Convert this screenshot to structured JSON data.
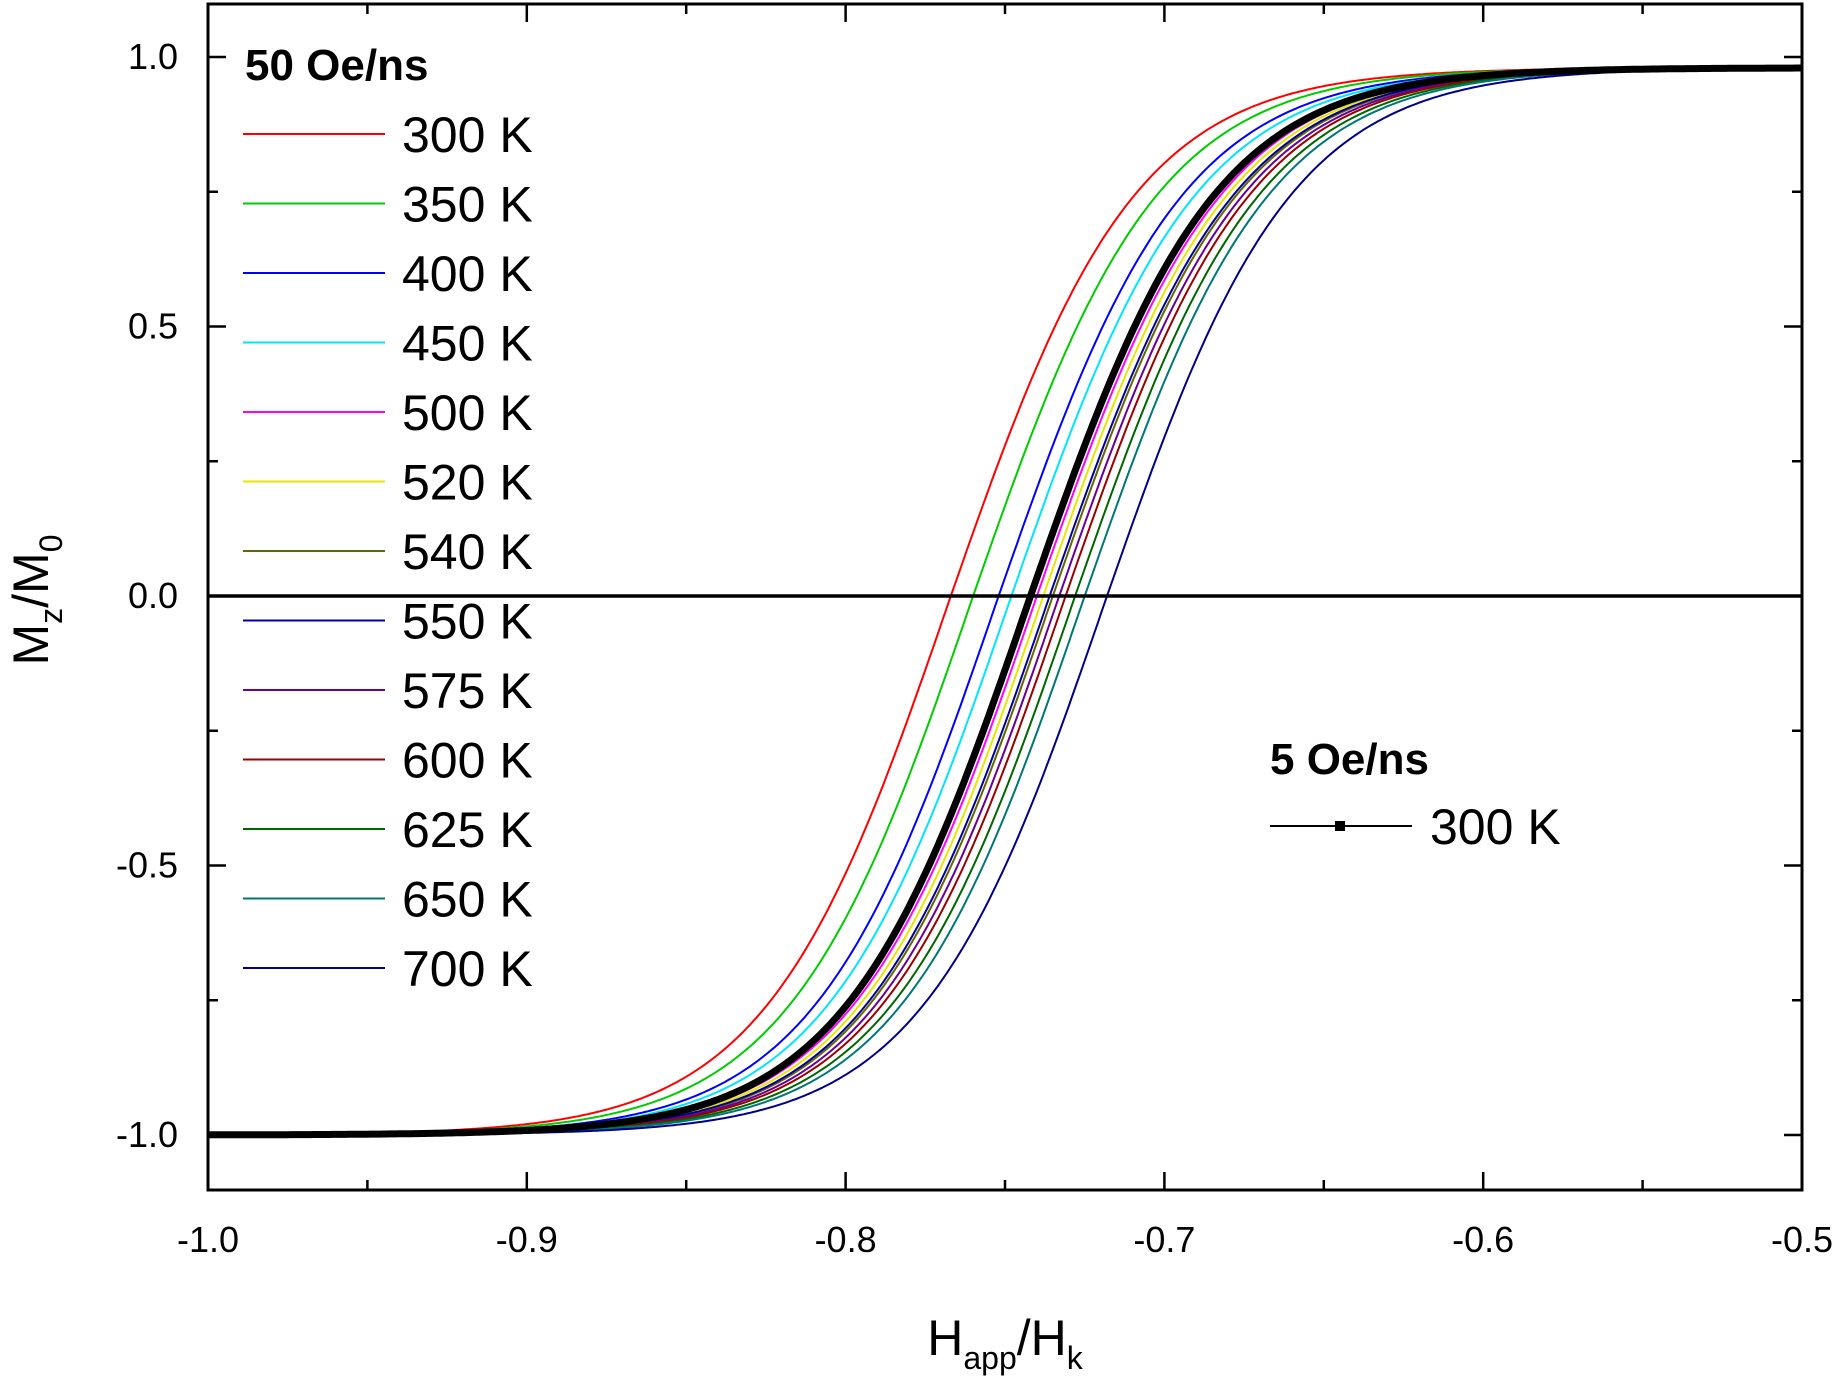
{
  "chart_data": {
    "type": "line",
    "title": "",
    "xlabel": {
      "main": "H",
      "sub": "app",
      "sep": "/H",
      "sub2": "k"
    },
    "ylabel": {
      "main": "M",
      "sub": "z",
      "sep": "/M",
      "sub2": "0"
    },
    "xlim": [
      -1.0,
      -0.5
    ],
    "ylim": [
      -1.1,
      1.0
    ],
    "x_ticks": [
      -1.0,
      -0.9,
      -0.8,
      -0.7,
      -0.6,
      -0.5
    ],
    "x_tick_labels": [
      "-1.0",
      "-0.9",
      "-0.8",
      "-0.7",
      "-0.6",
      "-0.5"
    ],
    "y_ticks": [
      -1.0,
      -0.5,
      0.0,
      0.5,
      1.0
    ],
    "y_tick_labels": [
      "-1.0",
      "-0.5",
      "0.0",
      "0.5",
      "1.0"
    ],
    "zero_line": true,
    "curve_model": "tanh (x - x0) / w, saturating at -1.0 and 0.98",
    "legend_50": {
      "title": "50 Oe/ns",
      "placement": "top-left",
      "series": [
        {
          "name": "300 K",
          "color": "#ff0000",
          "x0": -0.767,
          "w": 0.058
        },
        {
          "name": "350 K",
          "color": "#00cc00",
          "x0": -0.76,
          "w": 0.058
        },
        {
          "name": "400 K",
          "color": "#0000ff",
          "x0": -0.752,
          "w": 0.058
        },
        {
          "name": "450 K",
          "color": "#00e5ff",
          "x0": -0.748,
          "w": 0.058
        },
        {
          "name": "500 K",
          "color": "#ff00ff",
          "x0": -0.74,
          "w": 0.058
        },
        {
          "name": "520 K",
          "color": "#e6e600",
          "x0": -0.738,
          "w": 0.058
        },
        {
          "name": "540 K",
          "color": "#666600",
          "x0": -0.735,
          "w": 0.058
        },
        {
          "name": "550 K",
          "color": "#000099",
          "x0": -0.736,
          "w": 0.058
        },
        {
          "name": "575 K",
          "color": "#660099",
          "x0": -0.733,
          "w": 0.058
        },
        {
          "name": "600 K",
          "color": "#990000",
          "x0": -0.731,
          "w": 0.058
        },
        {
          "name": "625 K",
          "color": "#006600",
          "x0": -0.728,
          "w": 0.058
        },
        {
          "name": "650 K",
          "color": "#007777",
          "x0": -0.725,
          "w": 0.058
        },
        {
          "name": "700 K",
          "color": "#000088",
          "x0": -0.718,
          "w": 0.058
        }
      ]
    },
    "legend_5": {
      "title": "5 Oe/ns",
      "placement": "right-middle",
      "series": [
        {
          "name": "300 K",
          "color": "#000000",
          "x0": -0.742,
          "w": 0.058,
          "marker": "square"
        }
      ]
    }
  }
}
